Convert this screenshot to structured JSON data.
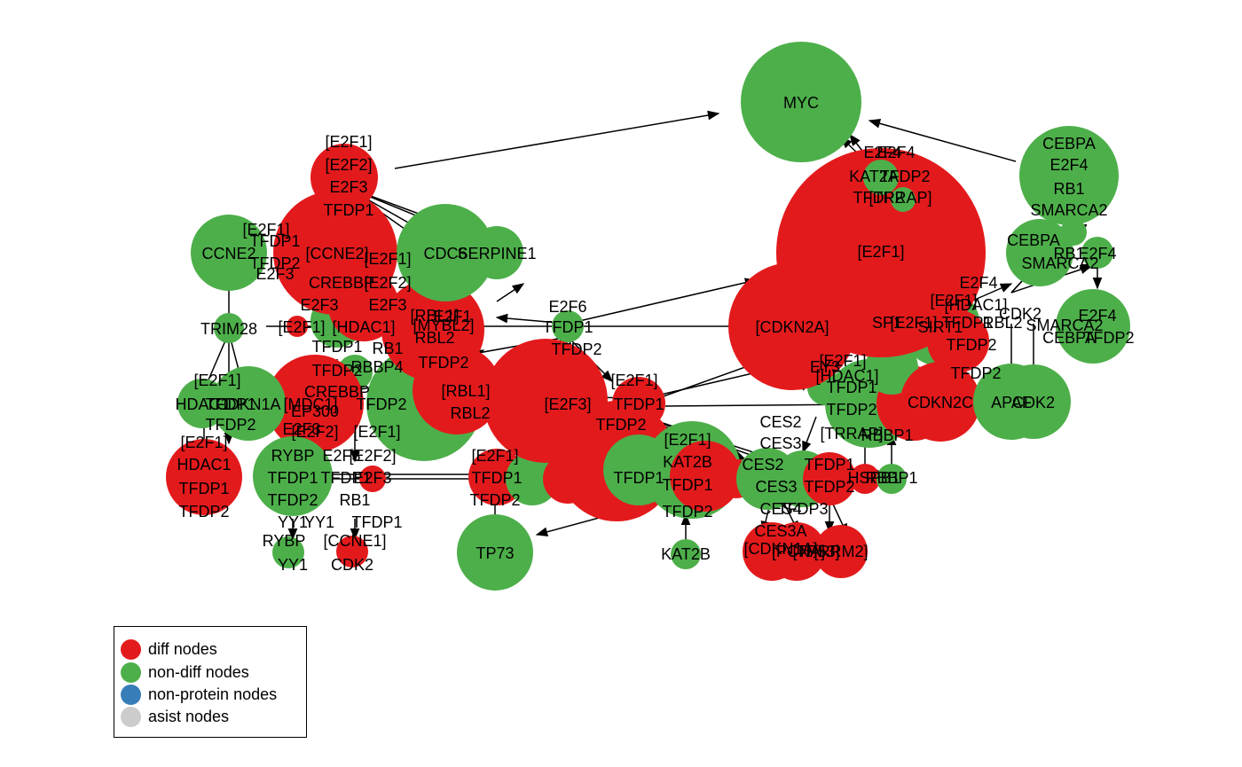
{
  "colors": {
    "diff": "#e31a1c",
    "nondiff": "#4daf4a",
    "nonprotein": "#377eb8",
    "asist": "#cccccc",
    "edge": "#000000"
  },
  "legend": [
    {
      "label": "diff nodes",
      "color": "#e31a1c"
    },
    {
      "label": "non-diff nodes",
      "color": "#4daf4a"
    },
    {
      "label": "non-protein nodes",
      "color": "#377eb8"
    },
    {
      "label": "asist nodes",
      "color": "#cccccc"
    }
  ],
  "nodes": [
    {
      "id": "myc",
      "type": "nondiff",
      "lines": [
        "MYC"
      ]
    },
    {
      "id": "e2f1_big",
      "type": "diff",
      "lines": [
        "[E2F1]"
      ]
    },
    {
      "id": "cdkn2a",
      "type": "diff",
      "lines": [
        "[CDKN2A]"
      ]
    },
    {
      "id": "cebpa_grp",
      "type": "nondiff",
      "lines": [
        "CEBPA",
        "E2F4",
        "RB1",
        "SMARCA2"
      ]
    },
    {
      "id": "cebpa_sm",
      "type": "nondiff",
      "lines": [
        "CEBPA",
        "SMARCA2"
      ]
    },
    {
      "id": "e2f4_r",
      "type": "nondiff",
      "lines": [
        "E2F4"
      ]
    },
    {
      "id": "e2f4_tfdp2",
      "type": "nondiff",
      "lines": [
        "E2F4",
        "TFDP2"
      ]
    },
    {
      "id": "rb1_r",
      "type": "nondiff",
      "lines": [
        "RB1"
      ]
    },
    {
      "id": "e2f4_kat2a",
      "type": "nondiff",
      "lines": [
        "E2F4",
        "KAT2A",
        "TFDP2"
      ]
    },
    {
      "id": "e2f2_tfdp2",
      "type": "nondiff",
      "lines": [
        "E2F2",
        "TFDP2"
      ]
    },
    {
      "id": "tfdp2_trrap",
      "type": "nondiff",
      "lines": [
        "[TRRAP]"
      ]
    },
    {
      "id": "e2f123_top",
      "type": "diff",
      "lines": [
        "[E2F1]",
        "[E2F2]",
        "E2F3",
        "TFDP1"
      ]
    },
    {
      "id": "ccne2",
      "type": "nondiff",
      "lines": [
        "CCNE2"
      ]
    },
    {
      "id": "e2f1_tfdp1",
      "type": "diff",
      "lines": [
        "[E2F1]",
        "TFDP1",
        "[CCNE2]",
        "TFDP2",
        "E2F3"
      ]
    },
    {
      "id": "cdc6",
      "type": "nondiff",
      "lines": [
        "CDC6"
      ]
    },
    {
      "id": "serpine1",
      "type": "nondiff",
      "lines": [
        "SERPINE1"
      ]
    },
    {
      "id": "e2f12_crebbp",
      "type": "diff",
      "lines": [
        "[E2F1]",
        "[E2F2]",
        "CREBBP",
        "E2F3"
      ]
    },
    {
      "id": "rbl1_rbl2",
      "type": "diff",
      "lines": [
        "[RBL1]",
        "RBL2"
      ]
    },
    {
      "id": "hdac1_l",
      "type": "diff",
      "lines": [
        "[E2F1]",
        "HDAC1",
        "TFDP1",
        "TFDP2"
      ]
    },
    {
      "id": "trim28",
      "type": "nondiff",
      "lines": [
        "TRIM28"
      ]
    },
    {
      "id": "hdac1_g",
      "type": "nondiff",
      "lines": [
        "HDAC1"
      ]
    },
    {
      "id": "cdkn1a",
      "type": "nondiff",
      "lines": [
        "CDKN1A"
      ]
    },
    {
      "id": "crebbp_ep300",
      "type": "diff",
      "lines": [
        "CREBBP",
        "EP300"
      ]
    },
    {
      "id": "rybp_yy1",
      "type": "nondiff",
      "lines": [
        "RYBP",
        "YY1"
      ]
    },
    {
      "id": "ccne1",
      "type": "diff",
      "lines": [
        "[CCNE1]",
        "CDK2"
      ]
    },
    {
      "id": "tfdp1_tfdp2_l",
      "type": "nondiff",
      "lines": [
        "TFDP1",
        "TFDP2"
      ]
    },
    {
      "id": "e2f6",
      "type": "nondiff",
      "lines": [
        "E2F6",
        "TFDP1",
        "TFDP2"
      ]
    },
    {
      "id": "rbl1_c",
      "type": "diff",
      "lines": [
        "[RBL1]",
        "RBL2"
      ]
    },
    {
      "id": "tfdp1_c",
      "type": "diff",
      "lines": [
        "TFDP1"
      ]
    },
    {
      "id": "tp73",
      "type": "nondiff",
      "lines": [
        "TP73"
      ]
    },
    {
      "id": "kat2b",
      "type": "nondiff",
      "lines": [
        "KAT2B"
      ]
    },
    {
      "id": "apaf",
      "type": "nondiff",
      "lines": [
        "APAF"
      ]
    },
    {
      "id": "cdk2_r",
      "type": "nondiff",
      "lines": [
        "CDK2"
      ]
    },
    {
      "id": "cdkn2c",
      "type": "diff",
      "lines": [
        "CDKN2C"
      ]
    },
    {
      "id": "cesb",
      "type": "nondiff",
      "lines": [
        "CES2",
        "CES3"
      ]
    },
    {
      "id": "pcna",
      "type": "diff",
      "lines": [
        "[PCNA]"
      ]
    },
    {
      "id": "tp53",
      "type": "diff",
      "lines": [
        "[TP53]"
      ]
    },
    {
      "id": "rrm2",
      "type": "diff",
      "lines": [
        "[RRM2]"
      ]
    },
    {
      "id": "tfdp1_tfdp2_r",
      "type": "diff",
      "lines": [
        "TFDP1",
        "TFDP2"
      ]
    },
    {
      "id": "rbbp1",
      "type": "nondiff",
      "lines": [
        "RBBP1"
      ]
    }
  ],
  "extra_labels": [
    "E2F4",
    "[E2F1]",
    "[HDAC1]",
    "CDK2",
    "SMARCA2",
    "CEBPA",
    "TFDP2",
    "[E2F3]",
    "[TRRAP]",
    "E2F3",
    "[E2F1]",
    "[E2F2]",
    "KAT2B",
    "TFDP1",
    "TFDP2",
    "CES2",
    "CES3",
    "CES4",
    "E2F3",
    "TFDP1",
    "TFDP2",
    "YY1",
    "RYBP",
    "[E2F1]",
    "TFDP2",
    "RB1",
    "[E2F2]",
    "TFDP1",
    "YY1",
    "[CCNE1]",
    "CDK2",
    "RB1",
    "CREBBP",
    "[MYBL2]",
    "[E2F1]",
    "CES3A",
    "TFDP2"
  ]
}
